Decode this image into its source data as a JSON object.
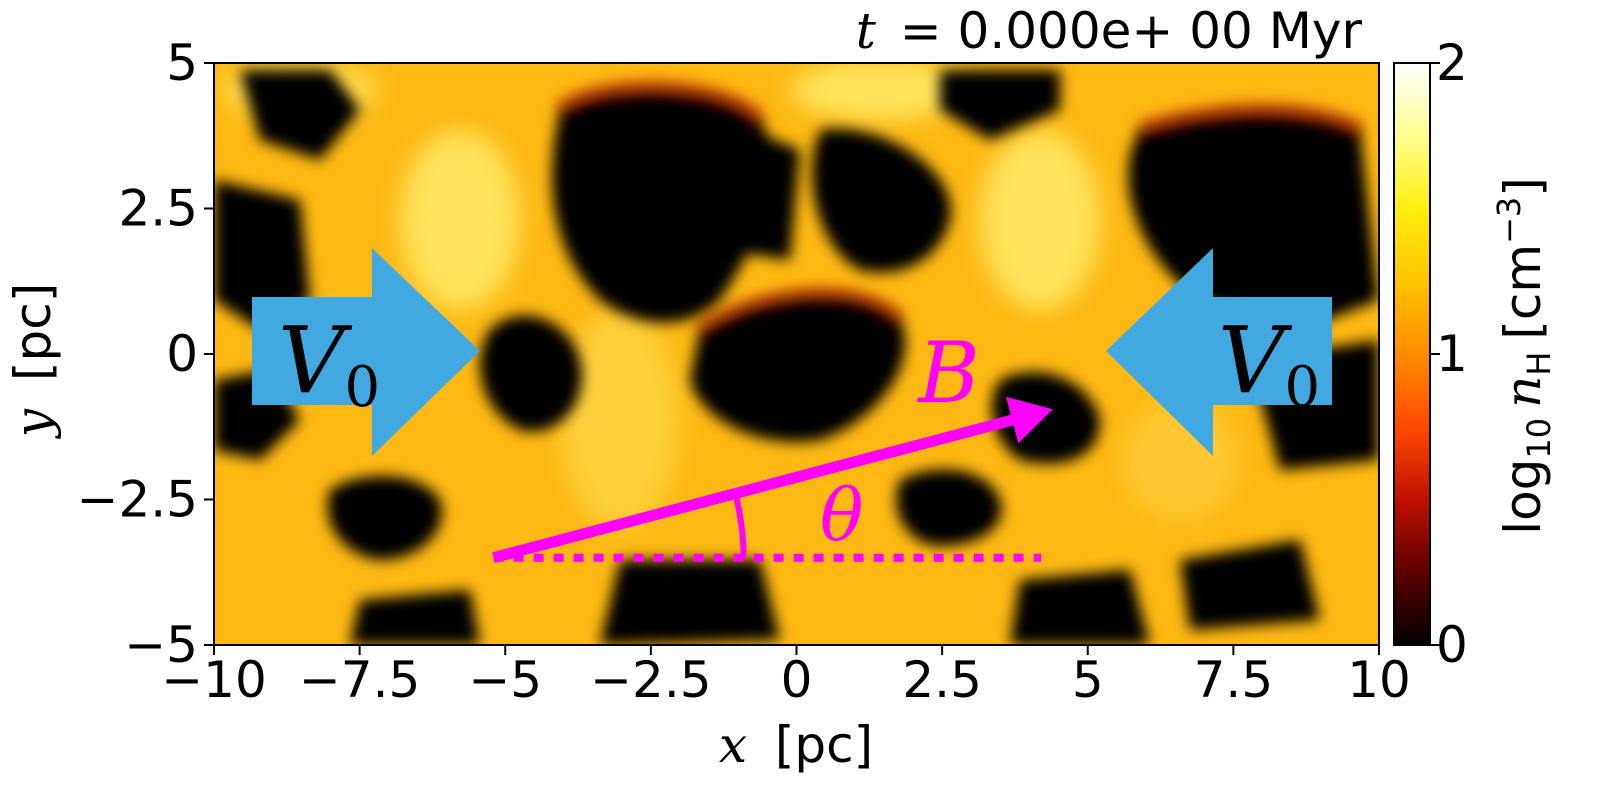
{
  "chart_data": {
    "type": "heatmap",
    "title": "t = 0.000e+ 00 Myr",
    "title_var": "t",
    "title_rest": "= 0.000e+ 00 Myr",
    "xlabel": "x [pc]",
    "xlabel_var": "x",
    "xlabel_unit": "[pc]",
    "ylabel": "y [pc]",
    "ylabel_var": "y",
    "ylabel_unit": "[pc]",
    "xlim": [
      -10,
      10
    ],
    "ylim": [
      -5,
      5
    ],
    "xticks": [
      -10,
      -7.5,
      -5,
      -2.5,
      0,
      2.5,
      5,
      7.5,
      10
    ],
    "xtick_labels": [
      "−10",
      "−7.5",
      "−5",
      "−2.5",
      "0",
      "2.5",
      "5",
      "7.5",
      "10"
    ],
    "yticks": [
      -5,
      -2.5,
      0,
      2.5,
      5
    ],
    "ytick_labels": [
      "−5",
      "−2.5",
      "0",
      "2.5",
      "5"
    ],
    "colorbar": {
      "label": "log10 nH [cm−3]",
      "label_base": "log",
      "label_base_sub": "10",
      "label_var": "n",
      "label_var_sub": "H",
      "label_unit": "[cm",
      "label_unit_sup": "−3",
      "label_unit_end": "]",
      "range": [
        0,
        2
      ],
      "ticks": [
        0,
        1,
        2
      ],
      "tick_labels": [
        "0",
        "1",
        "2"
      ],
      "colormap": "hot",
      "colors": [
        "#000000",
        "#5c0000",
        "#c01000",
        "#ff4a00",
        "#ff8c00",
        "#ffc400",
        "#ffee10",
        "#ffff90",
        "#ffffff"
      ]
    },
    "annotations": {
      "inflow_left": {
        "label": "V",
        "sub": "0",
        "direction": "right",
        "color": "#41a8e0"
      },
      "inflow_right": {
        "label": "V",
        "sub": "0",
        "direction": "left",
        "color": "#41a8e0"
      },
      "field_vector": {
        "label": "B",
        "start": [
          -5.2,
          -3.5
        ],
        "end": [
          4.4,
          -0.95
        ],
        "color": "#ff00ff"
      },
      "reference_line": {
        "start": [
          -5.2,
          -3.5
        ],
        "end": [
          4.2,
          -3.5
        ],
        "style": "dotted",
        "color": "#ff00ff"
      },
      "angle": {
        "label": "θ",
        "color": "#ff00ff"
      }
    }
  }
}
